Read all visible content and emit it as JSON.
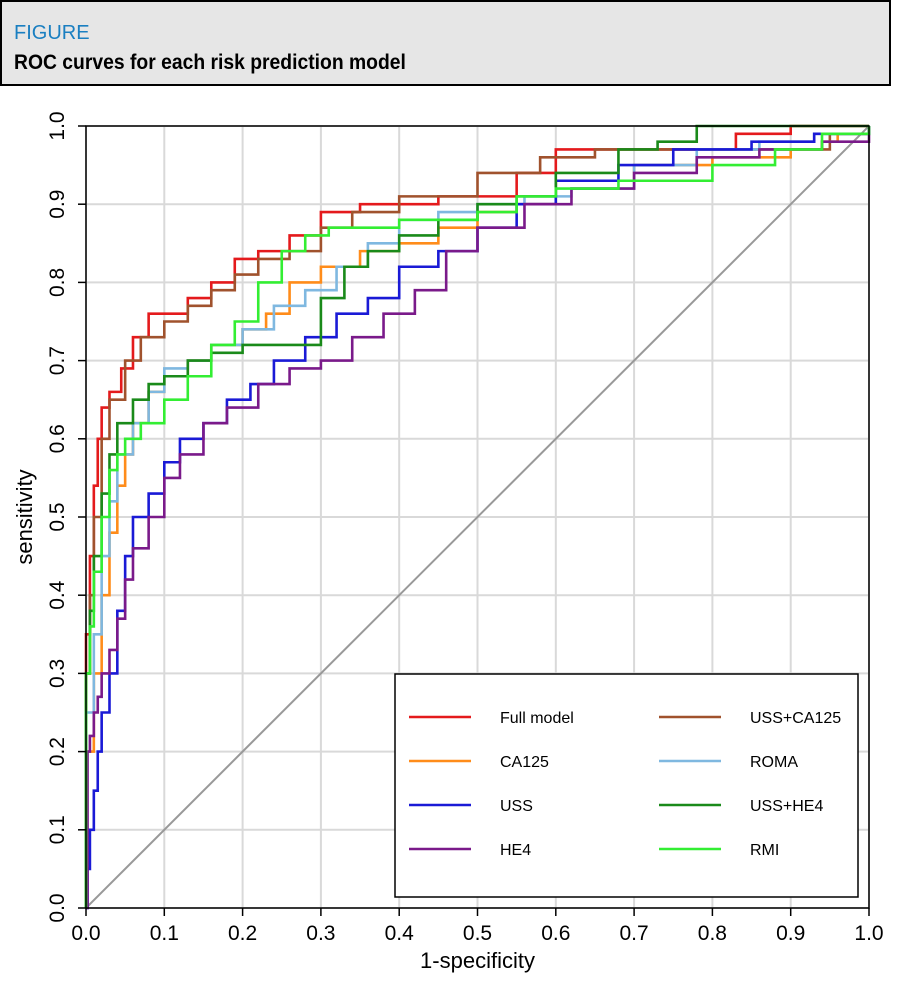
{
  "header": {
    "kicker": "FIGURE",
    "title": "ROC curves for each risk prediction model"
  },
  "chart_data": {
    "type": "line",
    "title": "",
    "xlabel": "1-specificity",
    "ylabel": "sensitivity",
    "xlim": [
      0,
      1
    ],
    "ylim": [
      0,
      1
    ],
    "grid": true,
    "legend_position": "bottom-right",
    "x_ticks": [
      "0.0",
      "0.1",
      "0.2",
      "0.3",
      "0.4",
      "0.5",
      "0.6",
      "0.7",
      "0.8",
      "0.9",
      "1.0"
    ],
    "y_ticks": [
      "0.0",
      "0.1",
      "0.2",
      "0.3",
      "0.4",
      "0.5",
      "0.6",
      "0.7",
      "0.8",
      "0.9",
      "1.0"
    ],
    "reference_line": {
      "x": [
        0,
        1
      ],
      "y": [
        0,
        1
      ],
      "color": "#999999"
    },
    "series": [
      {
        "name": "Full model",
        "color": "#e41a1c",
        "x": [
          0,
          0,
          0.005,
          0.01,
          0.015,
          0.02,
          0.03,
          0.045,
          0.06,
          0.08,
          0.1,
          0.13,
          0.16,
          0.19,
          0.22,
          0.26,
          0.3,
          0.35,
          0.45,
          0.55,
          0.6,
          0.75,
          0.83,
          0.9,
          1.0
        ],
        "y": [
          0,
          0.35,
          0.45,
          0.54,
          0.6,
          0.64,
          0.66,
          0.69,
          0.73,
          0.76,
          0.76,
          0.78,
          0.8,
          0.83,
          0.84,
          0.86,
          0.89,
          0.9,
          0.91,
          0.94,
          0.97,
          0.97,
          0.99,
          1.0,
          1.0
        ]
      },
      {
        "name": "USS+CA125",
        "color": "#a0522d",
        "x": [
          0,
          0,
          0.005,
          0.01,
          0.02,
          0.03,
          0.05,
          0.07,
          0.1,
          0.13,
          0.16,
          0.19,
          0.22,
          0.26,
          0.3,
          0.34,
          0.4,
          0.5,
          0.58,
          0.65,
          0.75,
          0.85,
          0.95,
          1.0
        ],
        "y": [
          0,
          0.3,
          0.4,
          0.5,
          0.6,
          0.65,
          0.7,
          0.73,
          0.75,
          0.77,
          0.79,
          0.81,
          0.83,
          0.84,
          0.87,
          0.89,
          0.91,
          0.94,
          0.96,
          0.97,
          0.97,
          0.97,
          0.99,
          1.0
        ]
      },
      {
        "name": "CA125",
        "color": "#ff8c1a",
        "x": [
          0,
          0,
          0.01,
          0.02,
          0.03,
          0.04,
          0.05,
          0.06,
          0.08,
          0.1,
          0.13,
          0.16,
          0.2,
          0.23,
          0.26,
          0.3,
          0.35,
          0.4,
          0.45,
          0.5,
          0.55,
          0.6,
          0.7,
          0.8,
          0.9,
          0.94,
          0.96,
          1.0
        ],
        "y": [
          0,
          0.2,
          0.3,
          0.4,
          0.48,
          0.54,
          0.58,
          0.62,
          0.66,
          0.68,
          0.7,
          0.72,
          0.74,
          0.76,
          0.8,
          0.82,
          0.84,
          0.85,
          0.87,
          0.89,
          0.9,
          0.93,
          0.95,
          0.96,
          0.97,
          0.98,
          0.99,
          1.0
        ]
      },
      {
        "name": "ROMA",
        "color": "#7fb8e0",
        "x": [
          0,
          0,
          0.01,
          0.02,
          0.03,
          0.04,
          0.06,
          0.08,
          0.1,
          0.13,
          0.16,
          0.2,
          0.24,
          0.28,
          0.32,
          0.36,
          0.4,
          0.45,
          0.5,
          0.56,
          0.62,
          0.7,
          0.78,
          0.86,
          0.93,
          1.0
        ],
        "y": [
          0,
          0.25,
          0.35,
          0.45,
          0.52,
          0.58,
          0.62,
          0.66,
          0.69,
          0.7,
          0.72,
          0.74,
          0.77,
          0.79,
          0.82,
          0.85,
          0.88,
          0.89,
          0.9,
          0.91,
          0.92,
          0.95,
          0.97,
          0.98,
          0.99,
          1.0
        ]
      },
      {
        "name": "USS",
        "color": "#1a1ad6",
        "x": [
          0,
          0.002,
          0.005,
          0.01,
          0.015,
          0.02,
          0.03,
          0.04,
          0.05,
          0.06,
          0.08,
          0.1,
          0.12,
          0.15,
          0.18,
          0.21,
          0.24,
          0.28,
          0.32,
          0.36,
          0.4,
          0.45,
          0.5,
          0.55,
          0.6,
          0.68,
          0.75,
          0.85,
          0.93,
          1.0
        ],
        "y": [
          0,
          0.05,
          0.1,
          0.15,
          0.2,
          0.25,
          0.3,
          0.38,
          0.45,
          0.5,
          0.53,
          0.57,
          0.6,
          0.62,
          0.65,
          0.67,
          0.7,
          0.73,
          0.76,
          0.78,
          0.82,
          0.84,
          0.87,
          0.9,
          0.93,
          0.95,
          0.97,
          0.98,
          0.99,
          1.0
        ]
      },
      {
        "name": "USS+HE4",
        "color": "#1a8a1a",
        "x": [
          0,
          0,
          0.005,
          0.01,
          0.02,
          0.03,
          0.04,
          0.06,
          0.08,
          0.1,
          0.13,
          0.16,
          0.2,
          0.25,
          0.3,
          0.33,
          0.36,
          0.4,
          0.45,
          0.5,
          0.55,
          0.6,
          0.68,
          0.73,
          0.78,
          0.85,
          0.92,
          1.0
        ],
        "y": [
          0,
          0.3,
          0.38,
          0.45,
          0.53,
          0.58,
          0.62,
          0.65,
          0.67,
          0.68,
          0.7,
          0.71,
          0.72,
          0.72,
          0.78,
          0.82,
          0.84,
          0.86,
          0.88,
          0.9,
          0.91,
          0.94,
          0.97,
          0.98,
          1.0,
          1.0,
          1.0,
          1.0
        ]
      },
      {
        "name": "HE4",
        "color": "#7a1a8a",
        "x": [
          0,
          0.002,
          0.005,
          0.01,
          0.015,
          0.02,
          0.03,
          0.04,
          0.05,
          0.06,
          0.08,
          0.1,
          0.12,
          0.15,
          0.18,
          0.22,
          0.26,
          0.3,
          0.34,
          0.38,
          0.42,
          0.46,
          0.5,
          0.56,
          0.62,
          0.7,
          0.78,
          0.86,
          0.94,
          1.0
        ],
        "y": [
          0,
          0.2,
          0.22,
          0.25,
          0.27,
          0.3,
          0.33,
          0.37,
          0.42,
          0.46,
          0.5,
          0.55,
          0.58,
          0.62,
          0.64,
          0.67,
          0.69,
          0.7,
          0.73,
          0.76,
          0.79,
          0.84,
          0.87,
          0.9,
          0.92,
          0.94,
          0.96,
          0.97,
          0.98,
          1.0
        ]
      },
      {
        "name": "RMI",
        "color": "#33ee33",
        "x": [
          0,
          0,
          0.005,
          0.01,
          0.02,
          0.03,
          0.04,
          0.05,
          0.07,
          0.1,
          0.13,
          0.16,
          0.19,
          0.22,
          0.25,
          0.28,
          0.31,
          0.35,
          0.4,
          0.45,
          0.5,
          0.55,
          0.6,
          0.68,
          0.75,
          0.8,
          0.88,
          0.94,
          1.0
        ],
        "y": [
          0,
          0.3,
          0.36,
          0.43,
          0.5,
          0.56,
          0.58,
          0.6,
          0.62,
          0.65,
          0.68,
          0.72,
          0.75,
          0.8,
          0.84,
          0.86,
          0.87,
          0.87,
          0.88,
          0.88,
          0.89,
          0.91,
          0.92,
          0.93,
          0.93,
          0.95,
          0.97,
          0.99,
          1.0
        ]
      }
    ]
  }
}
